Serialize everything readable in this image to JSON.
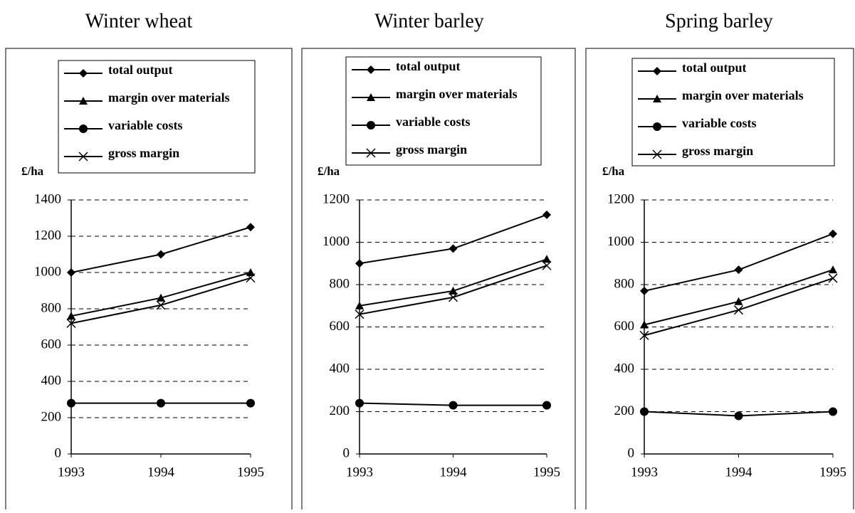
{
  "chart_data": [
    {
      "type": "line",
      "title": "Winter wheat",
      "ylabel": "£/ha",
      "categories": [
        "1993",
        "1994",
        "1995"
      ],
      "ylim": [
        0,
        1400
      ],
      "yticks": [
        0,
        200,
        400,
        600,
        800,
        1000,
        1200,
        1400
      ],
      "grid": true,
      "series": [
        {
          "name": "total output",
          "color": "#000000",
          "marker": "diamond",
          "values": [
            1000,
            1100,
            1250
          ]
        },
        {
          "name": "margin over materials",
          "color": "#000000",
          "marker": "triangle",
          "values": [
            760,
            860,
            1000
          ]
        },
        {
          "name": "variable costs",
          "color": "#000000",
          "marker": "circle",
          "values": [
            280,
            280,
            280
          ]
        },
        {
          "name": "gross margin",
          "color": "#000000",
          "marker": "x",
          "values": [
            720,
            820,
            970
          ]
        }
      ]
    },
    {
      "type": "line",
      "title": "Winter barley",
      "ylabel": "£/ha",
      "categories": [
        "1993",
        "1994",
        "1995"
      ],
      "ylim": [
        0,
        1200
      ],
      "yticks": [
        0,
        200,
        400,
        600,
        800,
        1000,
        1200
      ],
      "grid": true,
      "series": [
        {
          "name": "total output",
          "color": "#000000",
          "marker": "diamond",
          "values": [
            900,
            970,
            1130
          ]
        },
        {
          "name": "margin over materials",
          "color": "#000000",
          "marker": "triangle",
          "values": [
            700,
            770,
            920
          ]
        },
        {
          "name": "variable costs",
          "color": "#000000",
          "marker": "circle",
          "values": [
            240,
            230,
            230
          ]
        },
        {
          "name": "gross margin",
          "color": "#000000",
          "marker": "x",
          "values": [
            660,
            740,
            890
          ]
        }
      ]
    },
    {
      "type": "line",
      "title": "Spring barley",
      "ylabel": "£/ha",
      "categories": [
        "1993",
        "1994",
        "1995"
      ],
      "ylim": [
        0,
        1200
      ],
      "yticks": [
        0,
        200,
        400,
        600,
        800,
        1000,
        1200
      ],
      "grid": true,
      "series": [
        {
          "name": "total output",
          "color": "#000000",
          "marker": "diamond",
          "values": [
            770,
            870,
            1040
          ]
        },
        {
          "name": "margin over materials",
          "color": "#000000",
          "marker": "triangle",
          "values": [
            610,
            720,
            870
          ]
        },
        {
          "name": "variable costs",
          "color": "#000000",
          "marker": "circle",
          "values": [
            200,
            180,
            200
          ]
        },
        {
          "name": "gross margin",
          "color": "#000000",
          "marker": "x",
          "values": [
            560,
            680,
            830
          ]
        }
      ]
    }
  ]
}
